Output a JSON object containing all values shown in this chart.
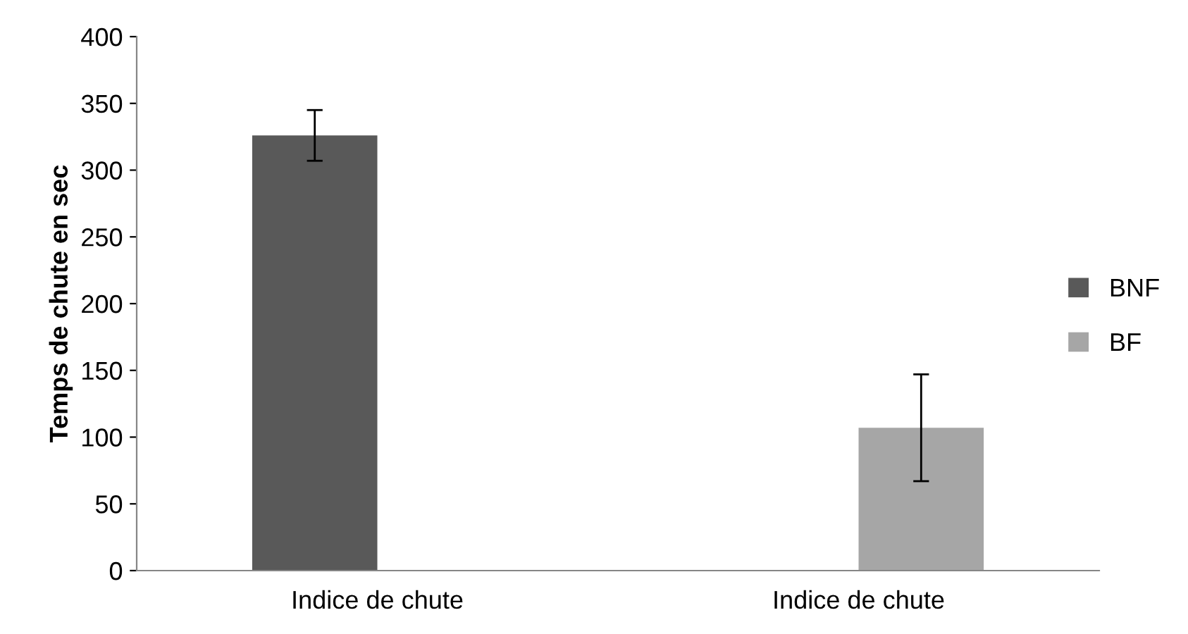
{
  "chart_data": {
    "type": "bar",
    "ylabel": "Temps de chute en sec",
    "categories": [
      "Indice de chute",
      "Indice de chute"
    ],
    "series": [
      {
        "name": "BNF",
        "color": "#595959",
        "values": [
          326,
          null
        ],
        "errors": [
          [
            307,
            345
          ],
          null
        ]
      },
      {
        "name": "BF",
        "color": "#a6a6a6",
        "values": [
          null,
          107
        ],
        "errors": [
          null,
          [
            67,
            147
          ]
        ]
      }
    ],
    "ylim": [
      0,
      400
    ],
    "yticks": [
      0,
      50,
      100,
      150,
      200,
      250,
      300,
      350,
      400
    ],
    "grid": false,
    "legend": "right"
  }
}
